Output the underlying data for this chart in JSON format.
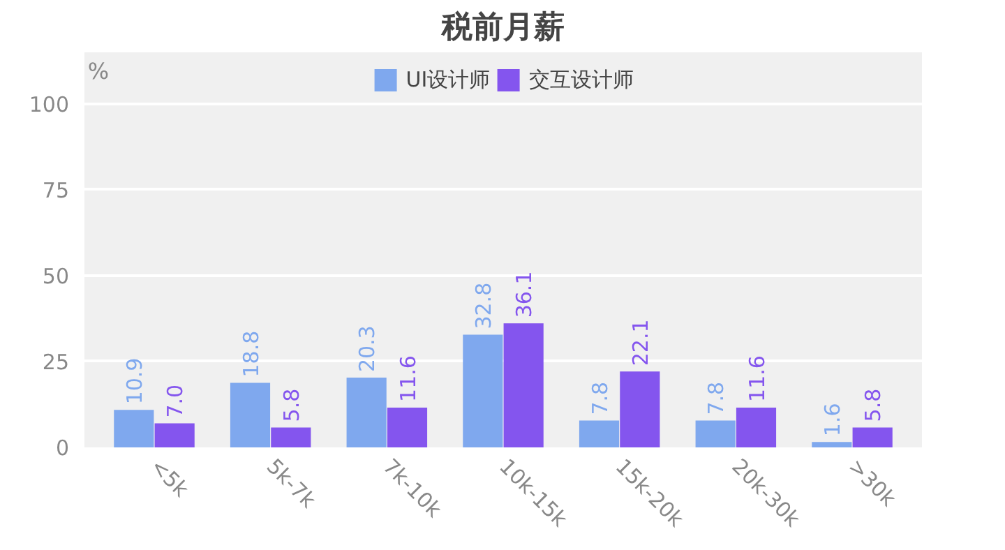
{
  "chart_data": {
    "type": "bar",
    "title": "税前月薪",
    "ylabel": "%",
    "categories": [
      "<5k",
      "5k-7k",
      "7k-10k",
      "10k-15k",
      "15k-20k",
      "20k-30k",
      ">30k"
    ],
    "series": [
      {
        "name": "UI设计师",
        "color": "#7fa8ee",
        "values": [
          10.9,
          18.8,
          20.3,
          32.8,
          7.8,
          7.8,
          1.6
        ],
        "value_labels": [
          "10.9",
          "18.8",
          "20.3",
          "32.8",
          "7.8",
          "7.8",
          "1.6"
        ]
      },
      {
        "name": "交互设计师",
        "color": "#8455ee",
        "values": [
          7.0,
          5.8,
          11.6,
          36.1,
          22.1,
          11.6,
          5.8
        ],
        "value_labels": [
          "7.0",
          "5.8",
          "11.6",
          "36.1",
          "22.1",
          "11.6",
          "5.8"
        ]
      }
    ],
    "ylim": [
      0,
      115
    ],
    "yticks": [
      0,
      25,
      50,
      75,
      100
    ],
    "grid": "y",
    "legend": "top"
  }
}
